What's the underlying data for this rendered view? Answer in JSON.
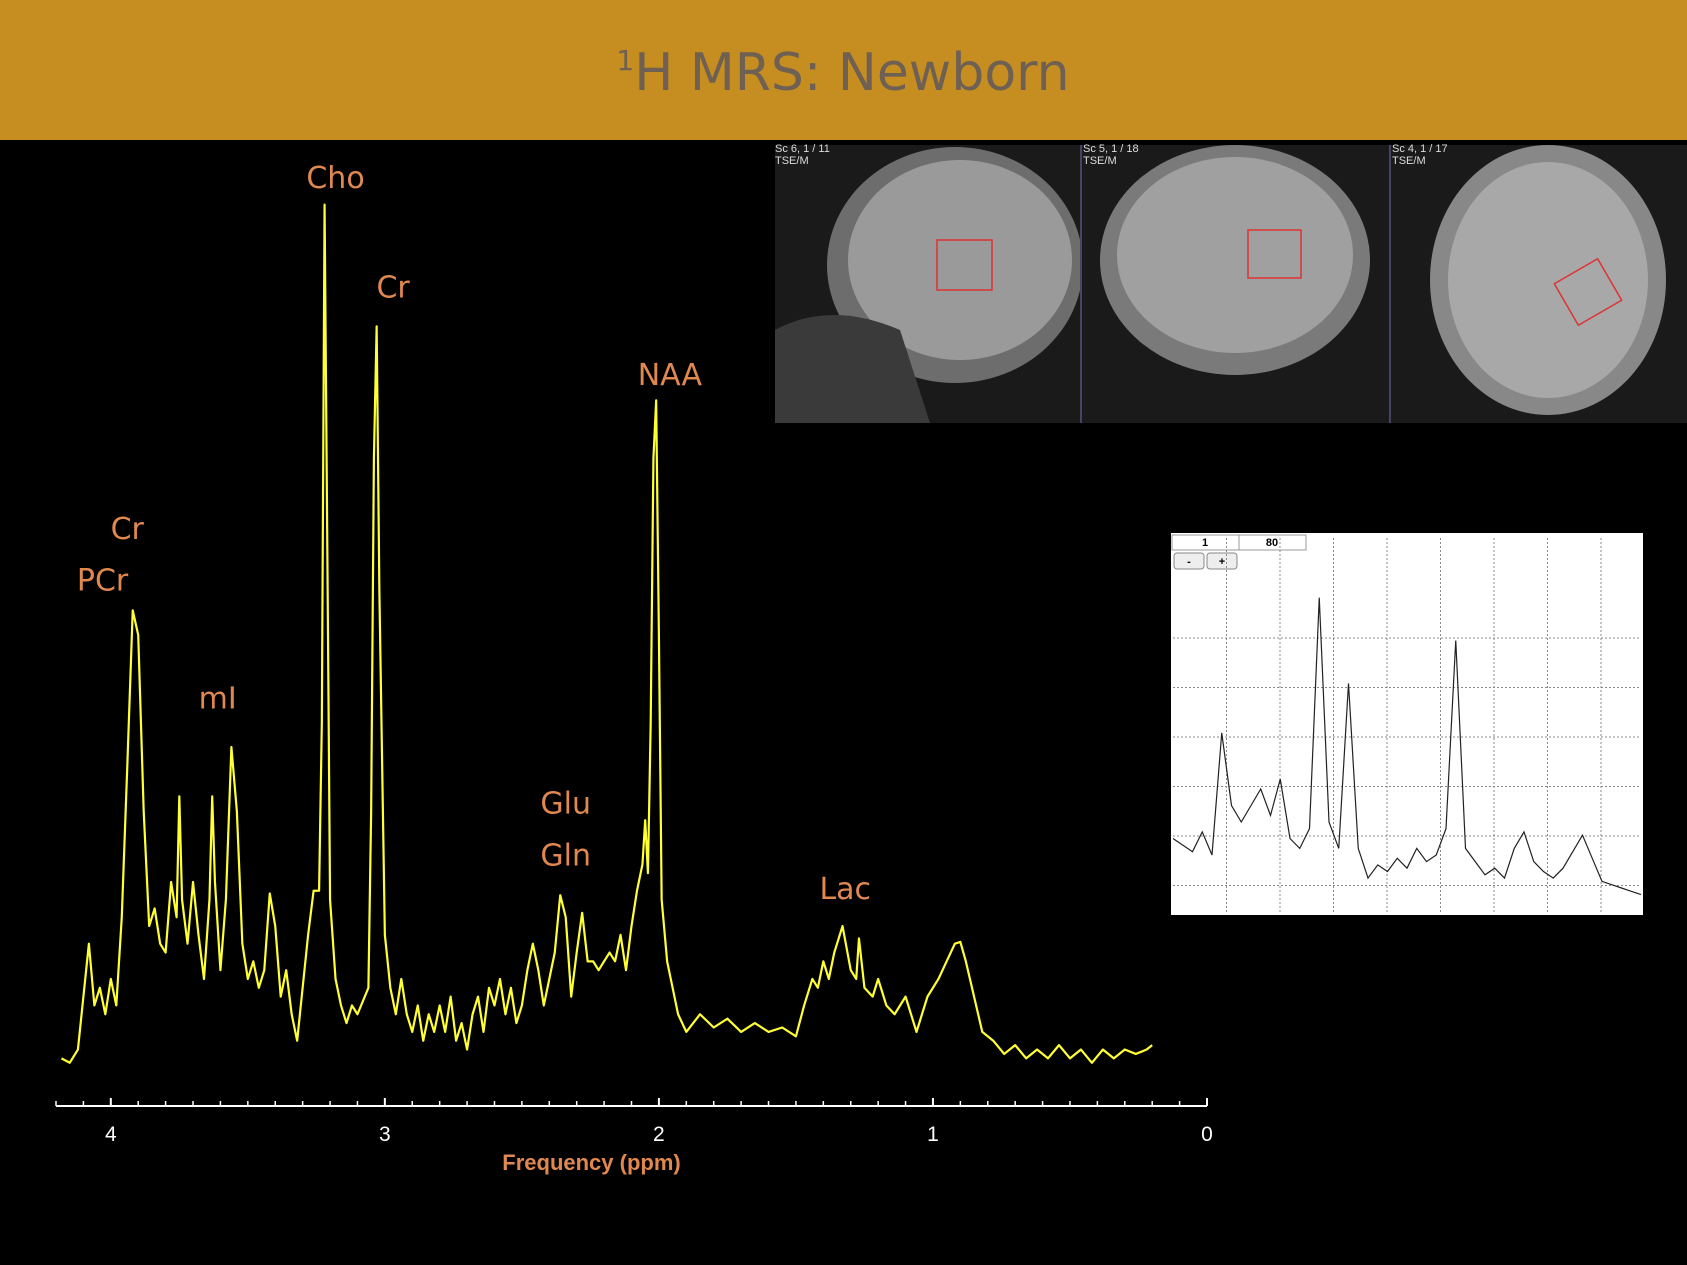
{
  "header": {
    "superscript": "1",
    "title": "H MRS: Newborn"
  },
  "chart_data": {
    "type": "line",
    "color": "#ffff33",
    "label_color": "#e0884f",
    "xlabel": "Frequency (ppm)",
    "xlim": [
      4.2,
      0
    ],
    "xticks": [
      4,
      3,
      2,
      1,
      0
    ],
    "minor_xticks": [
      4.2,
      4.1,
      3.9,
      3.8,
      3.7,
      3.6,
      3.5,
      3.4,
      3.3,
      3.2,
      3.1,
      2.9,
      2.8,
      2.7,
      2.6,
      2.5,
      2.4,
      2.3,
      2.2,
      2.1,
      1.9,
      1.8,
      1.7,
      1.6,
      1.5,
      1.4,
      1.3,
      1.2,
      1.1,
      0.9,
      0.8,
      0.7,
      0.6,
      0.5,
      0.4,
      0.3,
      0.2,
      0.1
    ],
    "ylim": [
      0,
      100
    ],
    "x": [
      4.18,
      4.15,
      4.12,
      4.1,
      4.08,
      4.06,
      4.04,
      4.02,
      4.0,
      3.98,
      3.96,
      3.94,
      3.92,
      3.9,
      3.88,
      3.86,
      3.84,
      3.82,
      3.8,
      3.78,
      3.76,
      3.75,
      3.74,
      3.72,
      3.7,
      3.68,
      3.66,
      3.64,
      3.63,
      3.62,
      3.6,
      3.58,
      3.56,
      3.54,
      3.52,
      3.5,
      3.48,
      3.46,
      3.44,
      3.42,
      3.4,
      3.38,
      3.36,
      3.34,
      3.32,
      3.3,
      3.28,
      3.26,
      3.24,
      3.23,
      3.22,
      3.21,
      3.2,
      3.18,
      3.16,
      3.14,
      3.12,
      3.1,
      3.06,
      3.05,
      3.04,
      3.03,
      3.02,
      3.0,
      2.98,
      2.96,
      2.94,
      2.92,
      2.9,
      2.88,
      2.86,
      2.84,
      2.82,
      2.8,
      2.78,
      2.76,
      2.74,
      2.72,
      2.7,
      2.68,
      2.66,
      2.64,
      2.62,
      2.6,
      2.58,
      2.56,
      2.54,
      2.52,
      2.5,
      2.48,
      2.46,
      2.44,
      2.42,
      2.4,
      2.38,
      2.36,
      2.34,
      2.32,
      2.3,
      2.28,
      2.26,
      2.24,
      2.22,
      2.2,
      2.18,
      2.16,
      2.14,
      2.12,
      2.1,
      2.08,
      2.06,
      2.05,
      2.04,
      2.03,
      2.02,
      2.01,
      2.0,
      1.99,
      1.97,
      1.95,
      1.93,
      1.9,
      1.85,
      1.8,
      1.75,
      1.7,
      1.65,
      1.6,
      1.55,
      1.5,
      1.47,
      1.44,
      1.42,
      1.4,
      1.38,
      1.36,
      1.33,
      1.3,
      1.28,
      1.27,
      1.25,
      1.22,
      1.2,
      1.17,
      1.14,
      1.1,
      1.06,
      1.02,
      0.98,
      0.95,
      0.92,
      0.9,
      0.88,
      0.85,
      0.82,
      0.78,
      0.74,
      0.7,
      0.66,
      0.62,
      0.58,
      0.54,
      0.5,
      0.46,
      0.42,
      0.38,
      0.34,
      0.3,
      0.26,
      0.22,
      0.2
    ],
    "values": [
      2,
      1.5,
      3,
      9,
      15,
      8,
      10,
      7,
      11,
      8,
      18,
      35,
      52.8,
      50,
      30,
      17,
      19,
      15,
      14,
      22,
      18,
      31.7,
      20,
      15,
      22,
      16,
      11,
      20,
      31.7,
      22,
      12,
      20,
      37.3,
      30,
      15,
      11,
      13,
      10,
      12,
      20.7,
      17,
      9,
      12,
      7,
      4,
      10,
      16,
      21,
      21,
      40,
      98.8,
      60,
      20,
      11,
      8,
      6,
      8,
      7,
      10,
      30,
      70,
      85,
      55,
      16,
      10,
      7,
      11,
      7,
      5,
      8,
      4,
      7,
      5,
      8,
      5,
      9,
      4,
      6,
      3,
      7,
      9,
      5,
      10,
      8,
      11,
      7,
      10,
      6,
      8,
      12,
      15,
      12,
      8,
      11,
      14,
      20.5,
      18,
      9,
      14,
      18.5,
      13,
      13,
      12,
      13,
      14,
      13,
      16,
      12,
      17,
      21,
      24,
      29,
      23,
      40,
      70,
      76.6,
      50,
      20,
      13,
      10,
      7,
      5,
      7,
      5.5,
      6.5,
      5,
      6,
      5,
      5.5,
      4.5,
      8,
      11,
      10,
      13,
      11,
      14,
      17,
      12,
      11,
      15.6,
      10,
      9,
      11,
      8,
      7,
      9,
      5,
      9,
      11,
      13,
      15,
      15.2,
      13,
      9,
      5,
      4,
      2.5,
      3.5,
      2,
      3,
      2,
      3.5,
      2,
      3,
      1.5,
      3,
      2,
      3,
      2.5,
      3,
      3.5
    ],
    "annotations": [
      {
        "text": "Cho",
        "x": 3.18,
        "y": 101.8
      },
      {
        "text": "Cr",
        "x": 2.97,
        "y": 89.4
      },
      {
        "text": "NAA",
        "x": 1.96,
        "y": 79.5
      },
      {
        "text": "Cr",
        "x": 3.94,
        "y": 62
      },
      {
        "text": "PCr",
        "x": 4.03,
        "y": 56.2
      },
      {
        "text": "mI",
        "x": 3.61,
        "y": 42.8
      },
      {
        "text": "Glu",
        "x": 2.34,
        "y": 30.9
      },
      {
        "text": "Gln",
        "x": 2.34,
        "y": 25
      },
      {
        "text": "Lac",
        "x": 1.32,
        "y": 21.2
      }
    ]
  },
  "mri_images": [
    {
      "caption": [
        "Sc 6, 1 / 11",
        "TSE/M"
      ]
    },
    {
      "caption": [
        "Sc 5, 1 / 18",
        "TSE/M"
      ]
    },
    {
      "caption": [
        "Sc 4, 1 / 17",
        "TSE/M"
      ]
    }
  ],
  "inset": {
    "fields": [
      "1",
      "80"
    ],
    "buttons": [
      "-",
      "+"
    ],
    "values": [
      15,
      13,
      11,
      17,
      10,
      47,
      25,
      20,
      25,
      30,
      22,
      33,
      15,
      12,
      18,
      88,
      20,
      12,
      62,
      12,
      3,
      7,
      5,
      9,
      6,
      12,
      8,
      10,
      18,
      75,
      12,
      8,
      4,
      6,
      3,
      12,
      17,
      8,
      5,
      3,
      6,
      11,
      16,
      9,
      2,
      1,
      0,
      -1,
      -2
    ]
  }
}
